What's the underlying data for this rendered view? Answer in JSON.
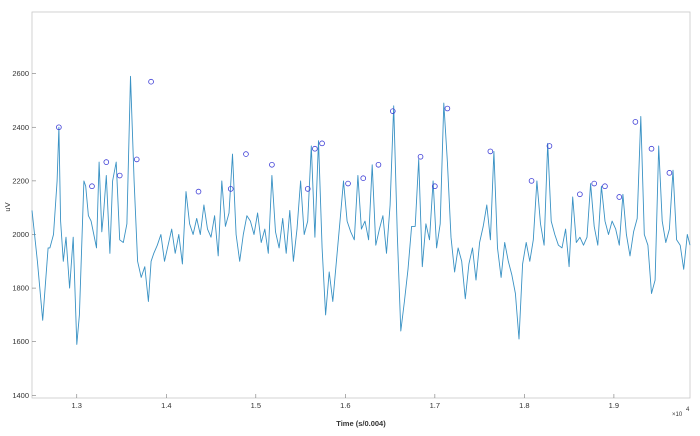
{
  "chart_data": {
    "type": "line",
    "xlabel": "Time (s/0.004)",
    "ylabel": "uV",
    "x_exponent_label": "×10",
    "x_exponent_power": "4",
    "xlim": [
      12500,
      19850
    ],
    "ylim": [
      1390,
      2830
    ],
    "x_ticks": [
      13000,
      14000,
      15000,
      16000,
      17000,
      18000,
      19000
    ],
    "x_tick_labels": [
      "1.3",
      "1.4",
      "1.5",
      "1.6",
      "1.7",
      "1.8",
      "1.9"
    ],
    "y_ticks": [
      1400,
      1600,
      1800,
      2000,
      2200,
      2400,
      2600
    ],
    "y_tick_labels": [
      "1400",
      "1600",
      "1800",
      "2000",
      "2200",
      "2400",
      "2600"
    ],
    "grid": false,
    "colors": {
      "signal": "#3a92c4",
      "peaks": "#3d3dd6"
    },
    "series": [
      {
        "values_x": [
          12500,
          12560,
          12620,
          12680,
          12700,
          12740,
          12780,
          12800,
          12820,
          12850,
          12880,
          12920,
          12960,
          13000,
          13030,
          13060,
          13080,
          13100,
          13130,
          13160,
          13190,
          13220,
          13250,
          13280,
          13300,
          13330,
          13370,
          13400,
          13440,
          13480,
          13520,
          13560,
          13600,
          13640,
          13680,
          13720,
          13760,
          13800,
          13830,
          13860,
          13900,
          13940,
          13980,
          14020,
          14060,
          14100,
          14140,
          14180,
          14220,
          14260,
          14300,
          14340,
          14380,
          14420,
          14460,
          14500,
          14540,
          14580,
          14620,
          14660,
          14700,
          14740,
          14780,
          14820,
          14860,
          14900,
          14940,
          14980,
          15020,
          15060,
          15100,
          15140,
          15180,
          15220,
          15260,
          15300,
          15340,
          15380,
          15420,
          15460,
          15500,
          15540,
          15580,
          15620,
          15660,
          15700,
          15740,
          15780,
          15820,
          15860,
          15900,
          15940,
          15980,
          16020,
          16060,
          16100,
          16140,
          16180,
          16220,
          16260,
          16300,
          16340,
          16380,
          16420,
          16460,
          16500,
          16540,
          16580,
          16620,
          16660,
          16700,
          16740,
          16780,
          16820,
          16860,
          16900,
          16940,
          16980,
          17020,
          17060,
          17100,
          17140,
          17180,
          17220,
          17260,
          17300,
          17340,
          17380,
          17420,
          17460,
          17500,
          17540,
          17580,
          17620,
          17660,
          17700,
          17740,
          17780,
          17820,
          17860,
          17900,
          17940,
          17980,
          18020,
          18060,
          18100,
          18140,
          18180,
          18220,
          18260,
          18300,
          18340,
          18380,
          18420,
          18460,
          18500,
          18540,
          18580,
          18620,
          18660,
          18700,
          18740,
          18780,
          18820,
          18860,
          18900,
          18940,
          18980,
          19020,
          19060,
          19100,
          19140,
          19180,
          19220,
          19260,
          19300,
          19340,
          19380,
          19420,
          19460,
          19500,
          19540,
          19580,
          19620,
          19660,
          19700,
          19740,
          19780,
          19820,
          19850
        ],
        "values_y": [
          2090,
          1900,
          1680,
          1950,
          1950,
          2000,
          2200,
          2400,
          2050,
          1900,
          1990,
          1800,
          1990,
          1590,
          1700,
          2000,
          2200,
          2180,
          2070,
          2050,
          2000,
          1950,
          2270,
          2010,
          2080,
          2220,
          1930,
          2200,
          2270,
          1980,
          1970,
          2040,
          2590,
          2200,
          1900,
          1840,
          1880,
          1750,
          1900,
          1930,
          1960,
          2000,
          1900,
          1960,
          2020,
          1930,
          2000,
          1890,
          2160,
          2040,
          2000,
          2060,
          2000,
          2110,
          2020,
          1990,
          2070,
          1920,
          2200,
          2030,
          2080,
          2300,
          2000,
          1900,
          2000,
          2070,
          2050,
          2000,
          2080,
          1970,
          2020,
          1930,
          2220,
          2010,
          1950,
          2060,
          1930,
          2090,
          1900,
          2020,
          2200,
          2000,
          2050,
          2330,
          1990,
          2350,
          1950,
          1700,
          1860,
          1750,
          1900,
          2050,
          2200,
          2050,
          2010,
          1980,
          2220,
          2020,
          2050,
          1980,
          2260,
          1960,
          2020,
          2070,
          1930,
          2110,
          2480,
          2000,
          1640,
          1750,
          1870,
          2030,
          2030,
          2280,
          1880,
          2040,
          1980,
          2200,
          1950,
          2040,
          2490,
          2270,
          1990,
          1860,
          1950,
          1900,
          1760,
          1890,
          1950,
          1830,
          1970,
          2030,
          2110,
          1980,
          2310,
          1950,
          1840,
          1970,
          1900,
          1850,
          1780,
          1610,
          1890,
          1970,
          1900,
          1980,
          2200,
          2040,
          1960,
          2340,
          2050,
          2000,
          1960,
          1950,
          2020,
          1880,
          2140,
          1970,
          1990,
          1960,
          1990,
          2190,
          2030,
          1960,
          2180,
          2050,
          2000,
          2050,
          2020,
          1960,
          2150,
          2000,
          1920,
          2010,
          2060,
          2440,
          2000,
          1960,
          1780,
          1830,
          2330,
          2050,
          1970,
          2020,
          2240,
          1980,
          1960,
          1870,
          2000,
          1960
        ]
      },
      {
        "values_x": [
          12800,
          13170,
          13330,
          13480,
          13670,
          13830,
          14360,
          14720,
          14890,
          15180,
          15580,
          15660,
          15740,
          16030,
          16200,
          16370,
          16530,
          16840,
          17000,
          17140,
          17620,
          18080,
          18280,
          18620,
          18780,
          18900,
          19060,
          19240,
          19420,
          19620
        ],
        "values_y": [
          2400,
          2180,
          2270,
          2220,
          2280,
          2570,
          2160,
          2170,
          2300,
          2260,
          2170,
          2320,
          2340,
          2190,
          2210,
          2260,
          2460,
          2290,
          2180,
          2470,
          2310,
          2200,
          2330,
          2150,
          2190,
          2180,
          2140,
          2420,
          2320,
          2230
        ]
      }
    ]
  }
}
